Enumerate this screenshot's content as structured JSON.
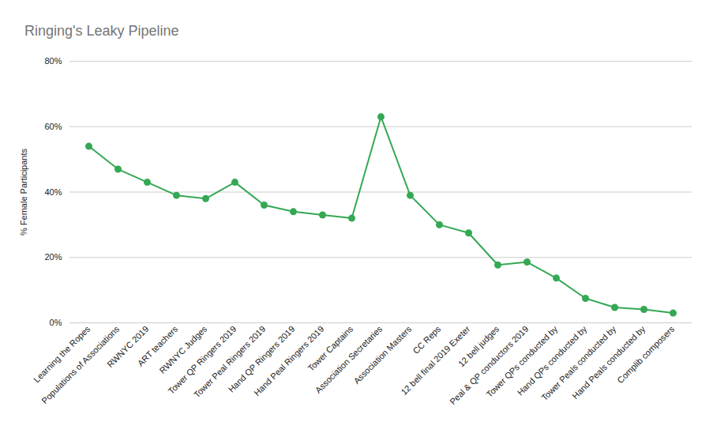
{
  "chart_data": {
    "type": "line",
    "title": "Ringing's Leaky Pipeline",
    "y_label": "% Female Participants",
    "categories": [
      "Learning the Ropes",
      "Populations of Associations",
      "RWNYC 2019",
      "ART teachers",
      "RWNYC Judges",
      "Tower QP Ringers 2019",
      "Tower Peal Ringers 2019",
      "Hand QP Ringers 2019",
      "Hand Peal Ringers 2019",
      "Tower Captains",
      "Association Secretaries",
      "Association Masters",
      "CC Reps",
      "12 bell final 2019 Exeter",
      "12 bell judges",
      "Peal & QP conductors 2019",
      "Tower QPs conducted by",
      "Hand QPs conducted by",
      "Tower Peals conducted by",
      "Hand Peals conducted by",
      "Complib composers"
    ],
    "values": [
      54,
      47,
      43,
      39,
      38,
      43,
      36,
      34,
      33,
      32,
      63,
      39,
      30,
      27.5,
      17.7,
      18.6,
      13.7,
      7.5,
      4.7,
      4.1,
      3.0
    ],
    "color": "#34a853",
    "marker": "circle",
    "ylim": [
      0,
      80
    ],
    "yticks": [
      {
        "value": 0,
        "label": "0%"
      },
      {
        "value": 20,
        "label": "20%"
      },
      {
        "value": 40,
        "label": "40%"
      },
      {
        "value": 60,
        "label": "60%"
      },
      {
        "value": 80,
        "label": "80%"
      }
    ],
    "grid": true
  }
}
